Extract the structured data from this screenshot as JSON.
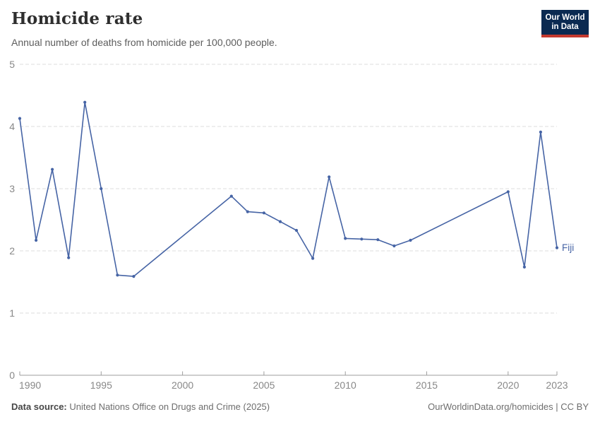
{
  "header": {
    "title": "Homicide rate",
    "subtitle": "Annual number of deaths from homicide per 100,000 people.",
    "logo": {
      "line1": "Our World",
      "line2": "in Data"
    }
  },
  "footer": {
    "source_label": "Data source:",
    "source_text": "United Nations Office on Drugs and Crime (2025)",
    "credit": "OurWorldinData.org/homicides | CC BY"
  },
  "colors": {
    "line": "#4664a5",
    "grid": "#dcdcdc",
    "axis": "#9e9e9e",
    "tick_label": "#888888",
    "logo_bg": "#0b2a51",
    "logo_red": "#c4392f"
  },
  "chart_data": {
    "type": "line",
    "title": "Homicide rate",
    "subtitle": "Annual number of deaths from homicide per 100,000 people.",
    "xlabel": "",
    "ylabel": "",
    "xlim": [
      1990,
      2023
    ],
    "ylim": [
      0,
      5
    ],
    "xticks": [
      1990,
      1995,
      2000,
      2005,
      2010,
      2015,
      2020,
      2023
    ],
    "yticks": [
      0,
      1,
      2,
      3,
      4,
      5
    ],
    "grid": "horizontal-dashed",
    "legend": "end-of-line-label",
    "missing_years_interpolated": [
      [
        1998,
        2002
      ],
      [
        2015,
        2019
      ]
    ],
    "series": [
      {
        "name": "Fiji",
        "x": [
          1990,
          1991,
          1992,
          1993,
          1994,
          1995,
          1996,
          1997,
          2003,
          2004,
          2005,
          2006,
          2007,
          2008,
          2009,
          2010,
          2011,
          2012,
          2013,
          2014,
          2020,
          2021,
          2022,
          2023
        ],
        "y": [
          4.13,
          2.17,
          3.31,
          1.89,
          4.39,
          3.0,
          1.61,
          1.59,
          2.88,
          2.63,
          2.61,
          2.47,
          2.33,
          1.88,
          3.19,
          2.2,
          2.19,
          2.18,
          2.08,
          2.17,
          2.95,
          1.74,
          3.91,
          2.05
        ]
      }
    ]
  }
}
